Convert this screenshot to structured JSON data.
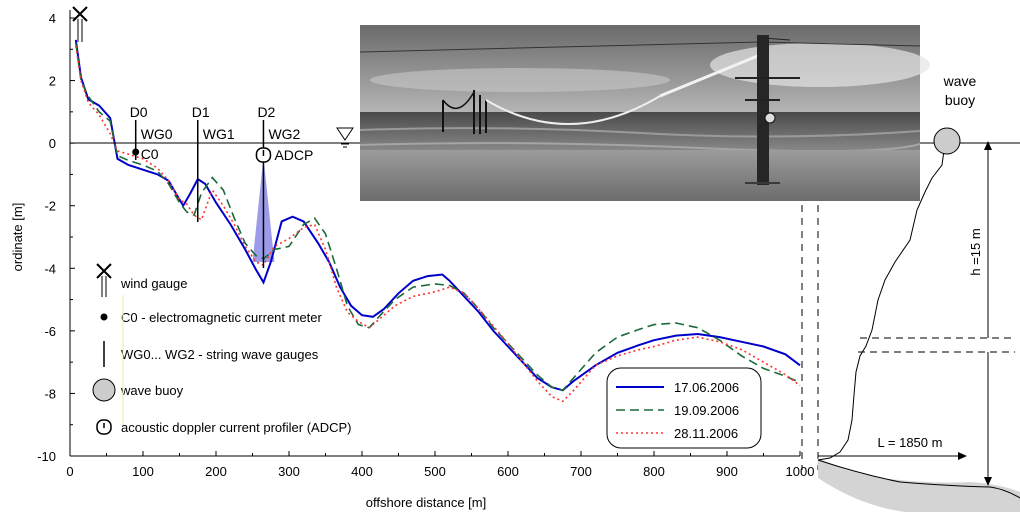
{
  "chart_data": {
    "type": "line",
    "xlabel": "offshore distance [m]",
    "ylabel": "ordinate [m]",
    "xlim": [
      0,
      1000
    ],
    "ylim": [
      -10,
      4
    ],
    "x_ticks": [
      "0",
      "100",
      "200",
      "300",
      "400",
      "500",
      "600",
      "700",
      "800",
      "900",
      "1000"
    ],
    "y_ticks": [
      "4",
      "2",
      "0",
      "-2",
      "-4",
      "-6",
      "-8",
      "-10"
    ],
    "series": [
      {
        "name": "17.06.2006",
        "color": "#0000cc",
        "dash": "solid",
        "x": [
          8,
          15,
          25,
          40,
          55,
          65,
          80,
          100,
          120,
          135,
          150,
          155,
          165,
          175,
          185,
          200,
          220,
          240,
          255,
          265,
          275,
          290,
          305,
          320,
          340,
          355,
          370,
          385,
          400,
          415,
          430,
          450,
          470,
          490,
          510,
          520,
          540,
          560,
          580,
          600,
          620,
          640,
          660,
          675,
          690,
          720,
          750,
          780,
          800,
          830,
          860,
          890,
          920,
          950,
          980,
          1000
        ],
        "y": [
          3.3,
          2.1,
          1.4,
          1.2,
          0.8,
          -0.5,
          -0.7,
          -0.85,
          -1.0,
          -1.2,
          -1.8,
          -2.0,
          -1.6,
          -1.15,
          -1.3,
          -1.9,
          -2.6,
          -3.4,
          -4.05,
          -4.45,
          -3.8,
          -2.5,
          -2.35,
          -2.5,
          -3.2,
          -3.8,
          -4.6,
          -5.2,
          -5.5,
          -5.55,
          -5.3,
          -4.8,
          -4.4,
          -4.25,
          -4.2,
          -4.4,
          -4.9,
          -5.4,
          -6.0,
          -6.5,
          -7.0,
          -7.5,
          -7.8,
          -7.9,
          -7.6,
          -7.1,
          -6.7,
          -6.45,
          -6.3,
          -6.15,
          -6.1,
          -6.2,
          -6.35,
          -6.5,
          -6.75,
          -7.1
        ]
      },
      {
        "name": "19.09.2006",
        "color": "#1a6a3a",
        "dash": "dashed",
        "x": [
          8,
          15,
          25,
          40,
          55,
          65,
          80,
          100,
          120,
          135,
          150,
          160,
          170,
          180,
          195,
          210,
          225,
          240,
          255,
          265,
          280,
          300,
          320,
          335,
          350,
          365,
          380,
          395,
          410,
          425,
          445,
          470,
          500,
          520,
          540,
          560,
          580,
          600,
          620,
          640,
          660,
          675,
          690,
          720,
          750,
          780,
          800,
          830,
          860,
          890,
          920,
          950,
          980,
          1000
        ],
        "y": [
          3.2,
          2.0,
          1.5,
          1.0,
          0.7,
          -0.4,
          -0.55,
          -0.7,
          -0.9,
          -1.3,
          -1.9,
          -2.2,
          -2.3,
          -1.6,
          -1.1,
          -1.5,
          -2.4,
          -3.2,
          -3.6,
          -3.7,
          -3.4,
          -3.3,
          -2.6,
          -2.4,
          -2.9,
          -4.0,
          -5.2,
          -5.8,
          -5.9,
          -5.5,
          -5.0,
          -4.6,
          -4.5,
          -4.55,
          -4.8,
          -5.3,
          -5.9,
          -6.4,
          -6.9,
          -7.4,
          -7.8,
          -7.9,
          -7.5,
          -6.7,
          -6.2,
          -5.95,
          -5.8,
          -5.75,
          -5.9,
          -6.3,
          -6.8,
          -7.2,
          -7.45,
          -7.65
        ]
      },
      {
        "name": "28.11.2006",
        "color": "#ff3333",
        "dash": "dotted",
        "x": [
          8,
          15,
          25,
          40,
          55,
          65,
          80,
          100,
          120,
          135,
          150,
          160,
          170,
          180,
          195,
          210,
          225,
          240,
          255,
          265,
          280,
          300,
          320,
          335,
          350,
          365,
          380,
          395,
          410,
          425,
          445,
          470,
          500,
          520,
          540,
          560,
          580,
          600,
          620,
          640,
          660,
          675,
          690,
          720,
          750,
          780,
          800,
          830,
          860,
          890,
          920,
          950,
          980,
          1000
        ],
        "y": [
          3.1,
          2.0,
          1.3,
          0.9,
          0.3,
          -0.25,
          -0.35,
          -0.5,
          -0.8,
          -1.2,
          -1.8,
          -1.95,
          -2.3,
          -2.45,
          -1.5,
          -2.0,
          -2.6,
          -3.3,
          -3.8,
          -3.9,
          -3.3,
          -3.05,
          -2.7,
          -2.6,
          -3.4,
          -4.6,
          -5.4,
          -5.7,
          -5.9,
          -5.6,
          -5.2,
          -4.9,
          -4.75,
          -4.6,
          -4.8,
          -5.3,
          -5.85,
          -6.4,
          -7.0,
          -7.6,
          -8.1,
          -8.25,
          -7.9,
          -7.1,
          -6.8,
          -6.6,
          -6.5,
          -6.3,
          -6.2,
          -6.35,
          -6.6,
          -7.0,
          -7.4,
          -7.75
        ]
      }
    ],
    "legend": {
      "placement": "bottom-right",
      "entries": [
        "17.06.2006",
        "19.09.2006",
        "28.11.2006"
      ]
    }
  },
  "instruments": {
    "posts": [
      {
        "name": "D0",
        "x": 90,
        "gauge": "WG0"
      },
      {
        "name": "D1",
        "x": 175,
        "gauge": "WG1"
      },
      {
        "name": "D2",
        "x": 265,
        "gauge": "WG2"
      }
    ],
    "c0_label": "C0",
    "adcp_label": "ADCP"
  },
  "key": {
    "wind": "wind gauge",
    "current_meter": "C0 - electromagnetic current meter",
    "wave_gauges": "WG0... WG2 - string wave gauges",
    "buoy": "wave buoy",
    "adcp": "acoustic doppler current profiler (ADCP)"
  },
  "profile_right": {
    "buoy_label_line1": "wave",
    "buoy_label_line2": "buoy",
    "depth_label": "h =15 m",
    "length_label": "L = 1850 m"
  },
  "colors": {
    "adcp_beam": "#6666dd",
    "seabed": "#d4d4d4",
    "buoy_fill": "#cccccc"
  }
}
